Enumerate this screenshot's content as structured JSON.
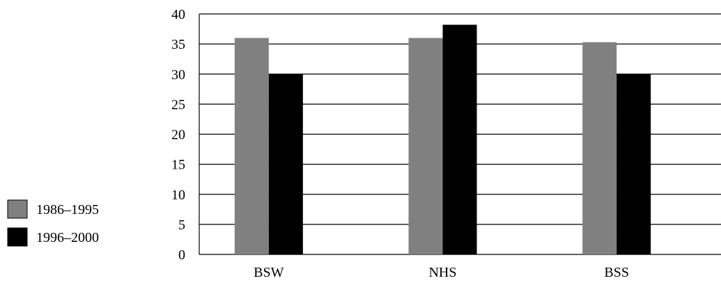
{
  "chart_data": {
    "type": "bar",
    "title": "",
    "xlabel": "",
    "ylabel": "",
    "categories": [
      "BSW",
      "NHS",
      "BSS"
    ],
    "series": [
      {
        "name": "1986–1995",
        "values": [
          36,
          36,
          35.3
        ],
        "color": "#808080"
      },
      {
        "name": "1996–2000",
        "values": [
          30,
          38.2,
          30
        ],
        "color": "#000000"
      }
    ],
    "ylim": [
      0,
      40
    ],
    "yticks": [
      "0",
      "5",
      "10",
      "15",
      "20",
      "25",
      "30",
      "35",
      "40"
    ],
    "grid": true,
    "legend_position": "left"
  }
}
